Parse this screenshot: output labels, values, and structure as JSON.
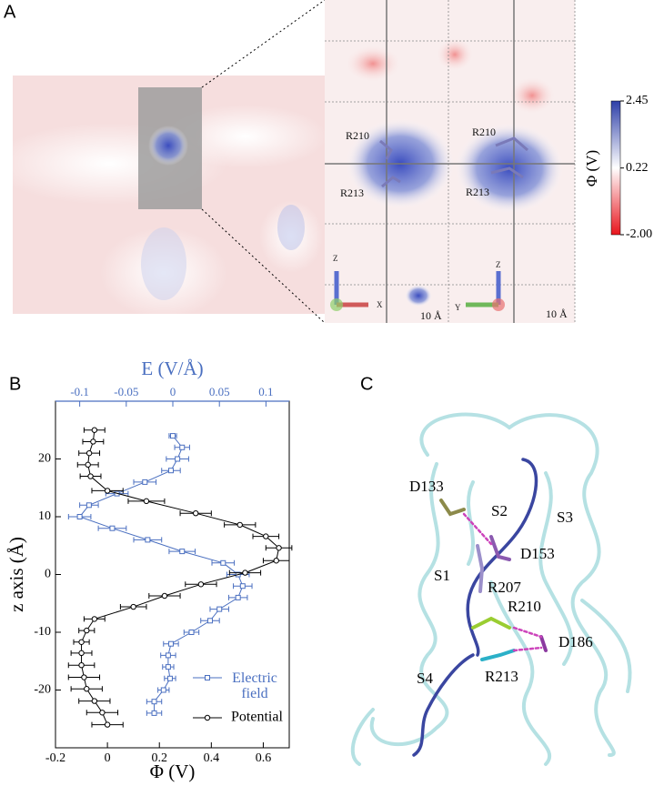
{
  "panel_labels": [
    "A",
    "B",
    "C"
  ],
  "panel_a": {
    "colorbar": {
      "label": "Φ (V)",
      "lim": [
        -2,
        2.45
      ],
      "ticks": [
        2.45,
        0.22,
        {
          "value": -2,
          "label": "-2.00"
        }
      ]
    },
    "residues": [
      "R210",
      "R213",
      "R210",
      "R213"
    ],
    "axes": [
      "Z",
      "X",
      "Y",
      "Z"
    ],
    "scale_bars": [
      "10 Å",
      "10 Å"
    ]
  },
  "chart_data": {
    "type": "line",
    "ylabel": "z axis (Å)",
    "xlabel": "Φ (V)",
    "x2label": "E (V/Å)",
    "xlim": [
      -0.2,
      0.7
    ],
    "xticks": [
      -0.2,
      0,
      0.2,
      0.4,
      0.6
    ],
    "x2lim": [
      -0.126,
      0.125
    ],
    "x2ticks": [
      -0.1,
      -0.05,
      0,
      0.05,
      0.1
    ],
    "ylim": [
      -30,
      30
    ],
    "yticks": [
      -20,
      -10,
      0,
      10,
      20
    ],
    "legend": "lower right",
    "series": [
      {
        "name": "Electric field",
        "color": "#4a6fc0",
        "axis": "x2",
        "marker": "square",
        "z": [
          24,
          22,
          20,
          18,
          16,
          14,
          12,
          10,
          8,
          6,
          4,
          2,
          0,
          -2,
          -4,
          -6,
          -8,
          -10,
          -12,
          -14,
          -16,
          -18,
          -20,
          -22,
          -24
        ],
        "values": [
          0,
          0.01,
          0.005,
          -0.002,
          -0.03,
          -0.06,
          -0.09,
          -0.1,
          -0.065,
          -0.027,
          0.01,
          0.054,
          0.07,
          0.075,
          0.07,
          0.05,
          0.04,
          0.02,
          -0.002,
          -0.005,
          -0.005,
          -0.003,
          -0.01,
          -0.02,
          -0.02
        ],
        "errors": [
          0.004,
          0.008,
          0.012,
          0.01,
          0.012,
          0.012,
          0.01,
          0.012,
          0.015,
          0.015,
          0.014,
          0.012,
          0.012,
          0.01,
          0.01,
          0.01,
          0.01,
          0.008,
          0.008,
          0.008,
          0.006,
          0.006,
          0.006,
          0.008,
          0.008
        ]
      },
      {
        "name": "Potential",
        "color": "#000000",
        "marker": "circle",
        "z": [
          25,
          23,
          21,
          19,
          17,
          14.5,
          12.7,
          10.6,
          8.6,
          6.6,
          4.6,
          2.4,
          0.3,
          -1.7,
          -3.7,
          -5.6,
          -7.7,
          -9.7,
          -11.7,
          -13.6,
          -15.7,
          -17.8,
          -19.8,
          -21.9,
          -23.9,
          -26
        ],
        "values": [
          -0.05,
          -0.055,
          -0.07,
          -0.075,
          -0.065,
          0,
          0.15,
          0.34,
          0.51,
          0.61,
          0.66,
          0.65,
          0.53,
          0.36,
          0.22,
          0.1,
          -0.05,
          -0.08,
          -0.1,
          -0.1,
          -0.1,
          -0.09,
          -0.08,
          -0.05,
          -0.02,
          0
        ],
        "errors": [
          0.04,
          0.04,
          0.04,
          0.04,
          0.04,
          0.06,
          0.07,
          0.06,
          0.06,
          0.05,
          0.05,
          0.05,
          0.06,
          0.06,
          0.06,
          0.05,
          0.04,
          0.03,
          0.03,
          0.04,
          0.05,
          0.06,
          0.06,
          0.06,
          0.06,
          0.06
        ]
      }
    ]
  },
  "panel_c": {
    "labels": [
      "D133",
      "S2",
      "S3",
      "D153",
      "S1",
      "R207",
      "R210",
      "D186",
      "S4",
      "R213"
    ]
  }
}
